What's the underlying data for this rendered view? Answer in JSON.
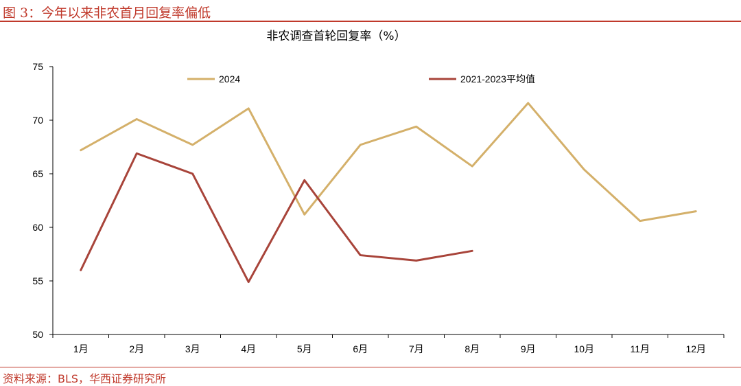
{
  "figure": {
    "title": "图 3：今年以来非农首月回复率偏低",
    "source": "资料来源：BLS，华西证券研究所"
  },
  "colors": {
    "accent": "#c0392b",
    "series_2024": "#d4b06a",
    "series_avg": "#a8443a"
  },
  "chart_data": {
    "type": "line",
    "title": "非农调查首轮回复率（%）",
    "categories": [
      "1月",
      "2月",
      "3月",
      "4月",
      "5月",
      "6月",
      "7月",
      "8月",
      "9月",
      "10月",
      "11月",
      "12月"
    ],
    "ylim": [
      50,
      75
    ],
    "yticks": [
      50,
      55,
      60,
      65,
      70,
      75
    ],
    "grid": false,
    "legend_position": "top",
    "series": [
      {
        "name": "2024",
        "color": "#d4b06a",
        "values": [
          67.2,
          70.1,
          67.7,
          71.1,
          61.2,
          67.7,
          69.4,
          65.7,
          71.6,
          65.4,
          60.6,
          61.5
        ]
      },
      {
        "name": "2021-2023平均值",
        "color": "#a8443a",
        "values": [
          56.0,
          66.9,
          65.0,
          54.9,
          64.4,
          57.4,
          56.9,
          57.8,
          null,
          null,
          null,
          null
        ]
      }
    ]
  }
}
